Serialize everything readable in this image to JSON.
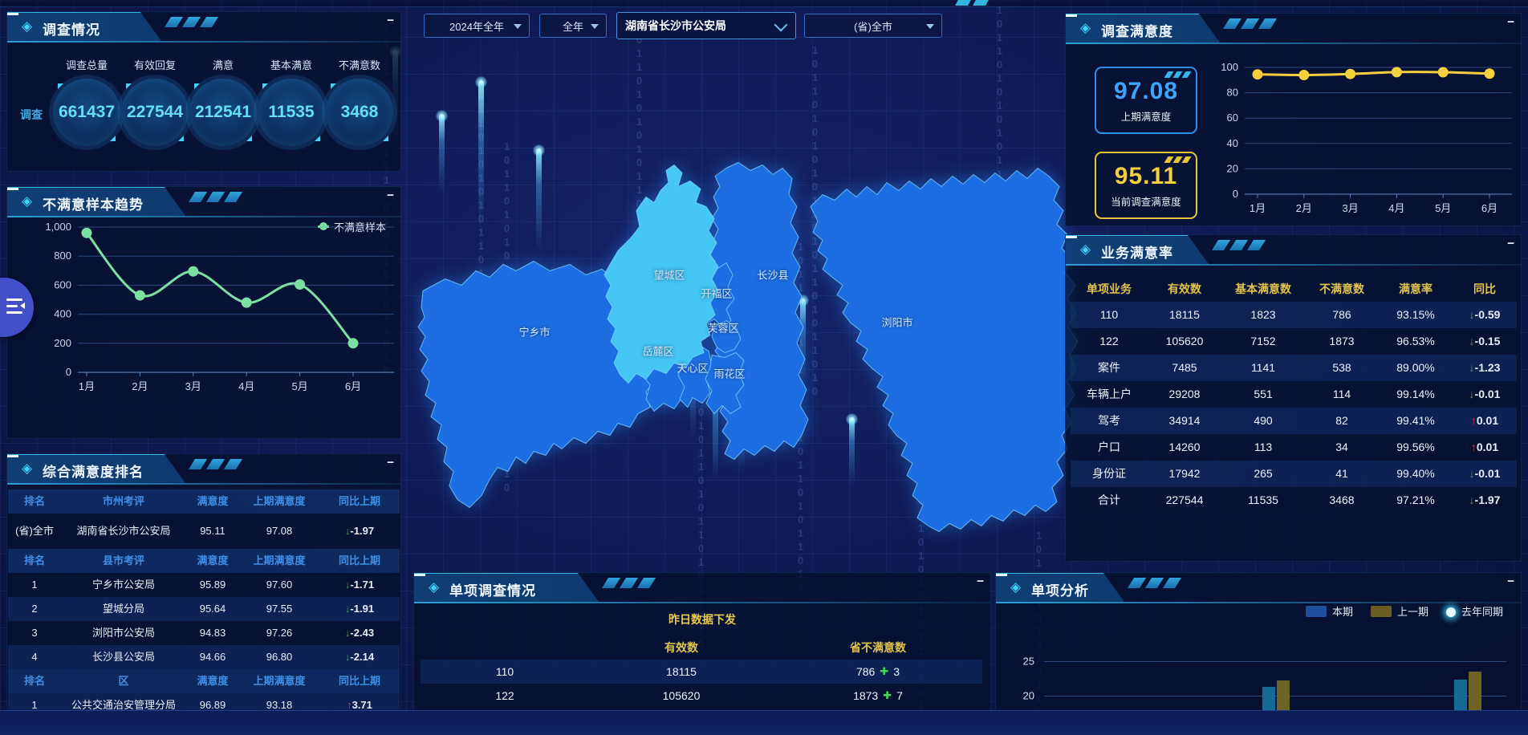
{
  "icons": {
    "minimize": "−",
    "diamond": "◈",
    "plus": "✚"
  },
  "decor": {
    "binary": "10110101010110101101011010"
  },
  "filters": [
    {
      "value": "2024年全年"
    },
    {
      "value": "全年"
    },
    {
      "value": "湖南省长沙市公安局"
    },
    {
      "value": "(省)全市"
    }
  ],
  "survey_panel": {
    "title": "调查情况",
    "side_label": "调查",
    "stats": [
      {
        "label": "调查总量",
        "value": "661437"
      },
      {
        "label": "有效回复",
        "value": "227544"
      },
      {
        "label": "满意",
        "value": "212541"
      },
      {
        "label": "基本满意",
        "value": "11535"
      },
      {
        "label": "不满意数",
        "value": "3468"
      }
    ]
  },
  "trend_panel": {
    "title": "不满意样本趋势",
    "legend": "不满意样本",
    "chart": {
      "type": "line",
      "categories": [
        "1月",
        "2月",
        "3月",
        "4月",
        "5月",
        "6月"
      ],
      "values": [
        960,
        530,
        695,
        480,
        605,
        200
      ],
      "yticks": [
        {
          "v": 0,
          "label": "0"
        },
        {
          "v": 200,
          "label": "200"
        },
        {
          "v": 400,
          "label": "400"
        },
        {
          "v": 600,
          "label": "600"
        },
        {
          "v": 800,
          "label": "800"
        },
        {
          "v": 1000,
          "label": "1,000"
        }
      ],
      "color": "#7ce0a2",
      "ylim": [
        0,
        1000
      ],
      "grid": true,
      "legend_position": "top-right"
    }
  },
  "ranking_panel": {
    "title": "综合满意度排名",
    "sections": [
      {
        "headers": [
          "排名",
          "市州考评",
          "满意度",
          "上期满意度",
          "同比上期"
        ],
        "rows": [
          {
            "rank": "(省)全市",
            "name": "湖南省长沙市公安局",
            "score": "95.11",
            "prev": "97.08",
            "arrow": "↓",
            "delta": "-1.97"
          }
        ]
      },
      {
        "headers": [
          "排名",
          "县市考评",
          "满意度",
          "上期满意度",
          "同比上期"
        ],
        "rows": [
          {
            "rank": "1",
            "name": "宁乡市公安局",
            "score": "95.89",
            "prev": "97.60",
            "arrow": "↓",
            "delta": "-1.71"
          },
          {
            "rank": "2",
            "name": "望城分局",
            "score": "95.64",
            "prev": "97.55",
            "arrow": "↓",
            "delta": "-1.91"
          },
          {
            "rank": "3",
            "name": "浏阳市公安局",
            "score": "94.83",
            "prev": "97.26",
            "arrow": "↓",
            "delta": "-2.43"
          },
          {
            "rank": "4",
            "name": "长沙县公安局",
            "score": "94.66",
            "prev": "96.80",
            "arrow": "↓",
            "delta": "-2.14"
          }
        ]
      },
      {
        "headers": [
          "排名",
          "区",
          "满意度",
          "上期满意度",
          "同比上期"
        ],
        "rows": [
          {
            "rank": "1",
            "name": "公共交通治安管理分局",
            "score": "96.89",
            "prev": "93.18",
            "arrow": "↑",
            "delta": "3.71"
          }
        ]
      }
    ]
  },
  "map": {
    "highlight": "望城区",
    "labels": [
      {
        "name": "宁乡市"
      },
      {
        "name": "望城区"
      },
      {
        "name": "长沙县"
      },
      {
        "name": "开福区"
      },
      {
        "name": "芙蓉区"
      },
      {
        "name": "岳麓区"
      },
      {
        "name": "天心区"
      },
      {
        "name": "雨花区"
      },
      {
        "name": "浏阳市"
      }
    ],
    "fill_color": "#1e6ee3",
    "highlight_color": "#45c6f4",
    "border_color": "#7fd9ff"
  },
  "satisfaction_panel": {
    "title": "调查满意度",
    "prev": {
      "value": "97.08",
      "label": "上期满意度"
    },
    "current": {
      "value": "95.11",
      "label": "当前调查满意度"
    },
    "chart": {
      "type": "line",
      "categories": [
        "1月",
        "2月",
        "3月",
        "4月",
        "5月",
        "6月"
      ],
      "values": [
        94.5,
        94.0,
        94.8,
        96.3,
        96.2,
        95.1
      ],
      "yticks": [
        {
          "v": 0,
          "label": "0"
        },
        {
          "v": 20,
          "label": "20"
        },
        {
          "v": 40,
          "label": "40"
        },
        {
          "v": 60,
          "label": "60"
        },
        {
          "v": 80,
          "label": "80"
        },
        {
          "v": 100,
          "label": "100"
        }
      ],
      "color": "#f5d03c",
      "ylim": [
        0,
        100
      ],
      "grid": true
    }
  },
  "business_panel": {
    "title": "业务满意率",
    "headers": [
      "单项业务",
      "有效数",
      "基本满意数",
      "不满意数",
      "满意率",
      "同比"
    ],
    "rows": [
      {
        "name": "110",
        "valid": "18115",
        "basic": "1823",
        "diss": "786",
        "rate": "93.15%",
        "arrow": "↓",
        "delta": "-0.59"
      },
      {
        "name": "122",
        "valid": "105620",
        "basic": "7152",
        "diss": "1873",
        "rate": "96.53%",
        "arrow": "↓",
        "delta": "-0.15"
      },
      {
        "name": "案件",
        "valid": "7485",
        "basic": "1141",
        "diss": "538",
        "rate": "89.00%",
        "arrow": "↓",
        "delta": "-1.23"
      },
      {
        "name": "车辆上户",
        "valid": "29208",
        "basic": "551",
        "diss": "114",
        "rate": "99.14%",
        "arrow": "↓",
        "delta": "-0.01"
      },
      {
        "name": "驾考",
        "valid": "34914",
        "basic": "490",
        "diss": "82",
        "rate": "99.41%",
        "arrow": "↑",
        "delta": "0.01"
      },
      {
        "name": "户口",
        "valid": "14260",
        "basic": "113",
        "diss": "34",
        "rate": "99.56%",
        "arrow": "↑",
        "delta": "0.01"
      },
      {
        "name": "身份证",
        "valid": "17942",
        "basic": "265",
        "diss": "41",
        "rate": "99.40%",
        "arrow": "↓",
        "delta": "-0.01"
      },
      {
        "name": "合计",
        "valid": "227544",
        "basic": "11535",
        "diss": "3468",
        "rate": "97.21%",
        "arrow": "↓",
        "delta": "-1.97"
      }
    ]
  },
  "single_panel": {
    "title": "单项调查情况",
    "subtitle": "昨日数据下发",
    "headers": [
      "有效数",
      "省不满意数"
    ],
    "rows": [
      {
        "code": "110",
        "valid": "18115",
        "diss": "786",
        "delta": "3"
      },
      {
        "code": "122",
        "valid": "105620",
        "diss": "1873",
        "delta": "7"
      }
    ]
  },
  "analysis_panel": {
    "title": "单项分析",
    "legend": [
      {
        "name": "本期",
        "color": "#1d4f9c"
      },
      {
        "name": "上一期",
        "color": "#6b5d22"
      },
      {
        "name": "去年同期",
        "color": "#35d2ff"
      }
    ],
    "chart": {
      "type": "bar",
      "yticks": [
        {
          "v": 25,
          "label": "25"
        },
        {
          "v": 20,
          "label": "20"
        }
      ],
      "series": [
        "本期",
        "上一期"
      ],
      "bar_colors": [
        "#156a96",
        "#6d6426"
      ],
      "groups": [
        {
          "values": [
            21.3,
            22.2
          ]
        },
        {
          "values": [
            22.3,
            23.5
          ]
        }
      ],
      "note": "chart clipped by viewport bottom"
    }
  }
}
